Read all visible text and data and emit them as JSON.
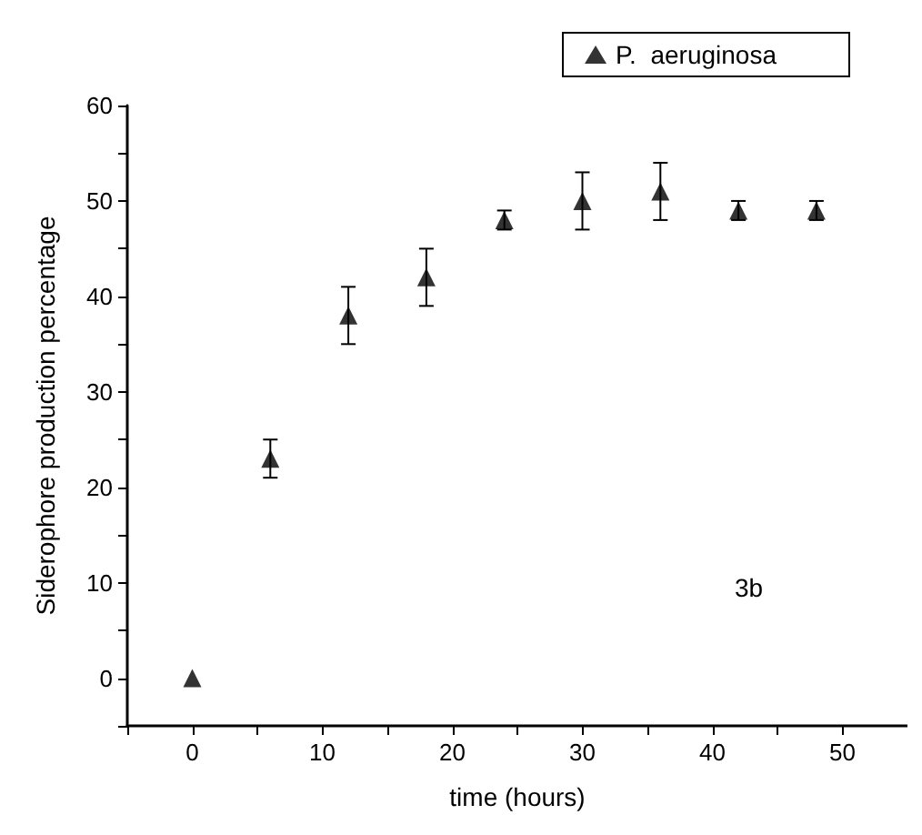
{
  "chart_data": {
    "type": "scatter",
    "xlabel": "time (hours)",
    "ylabel": "Siderophore production percentage",
    "annotations": [
      "3b"
    ],
    "x": [
      0,
      6,
      12,
      18,
      24,
      30,
      36,
      42,
      48
    ],
    "series": [
      {
        "name": "P.  aeruginosa",
        "color": "#000000",
        "values": [
          0,
          23,
          38,
          42,
          48,
          50,
          51,
          49,
          49
        ],
        "errors": [
          null,
          2,
          3,
          3,
          1,
          3,
          3,
          1,
          1
        ]
      }
    ],
    "xlim": [
      -5,
      55
    ],
    "xticks": [
      0,
      10,
      20,
      30,
      40,
      50
    ],
    "ylim": [
      -5,
      60
    ],
    "yticks": [
      0,
      10,
      20,
      30,
      40,
      50,
      60
    ],
    "marker": "triangle",
    "legend": "top right",
    "grid": false
  }
}
